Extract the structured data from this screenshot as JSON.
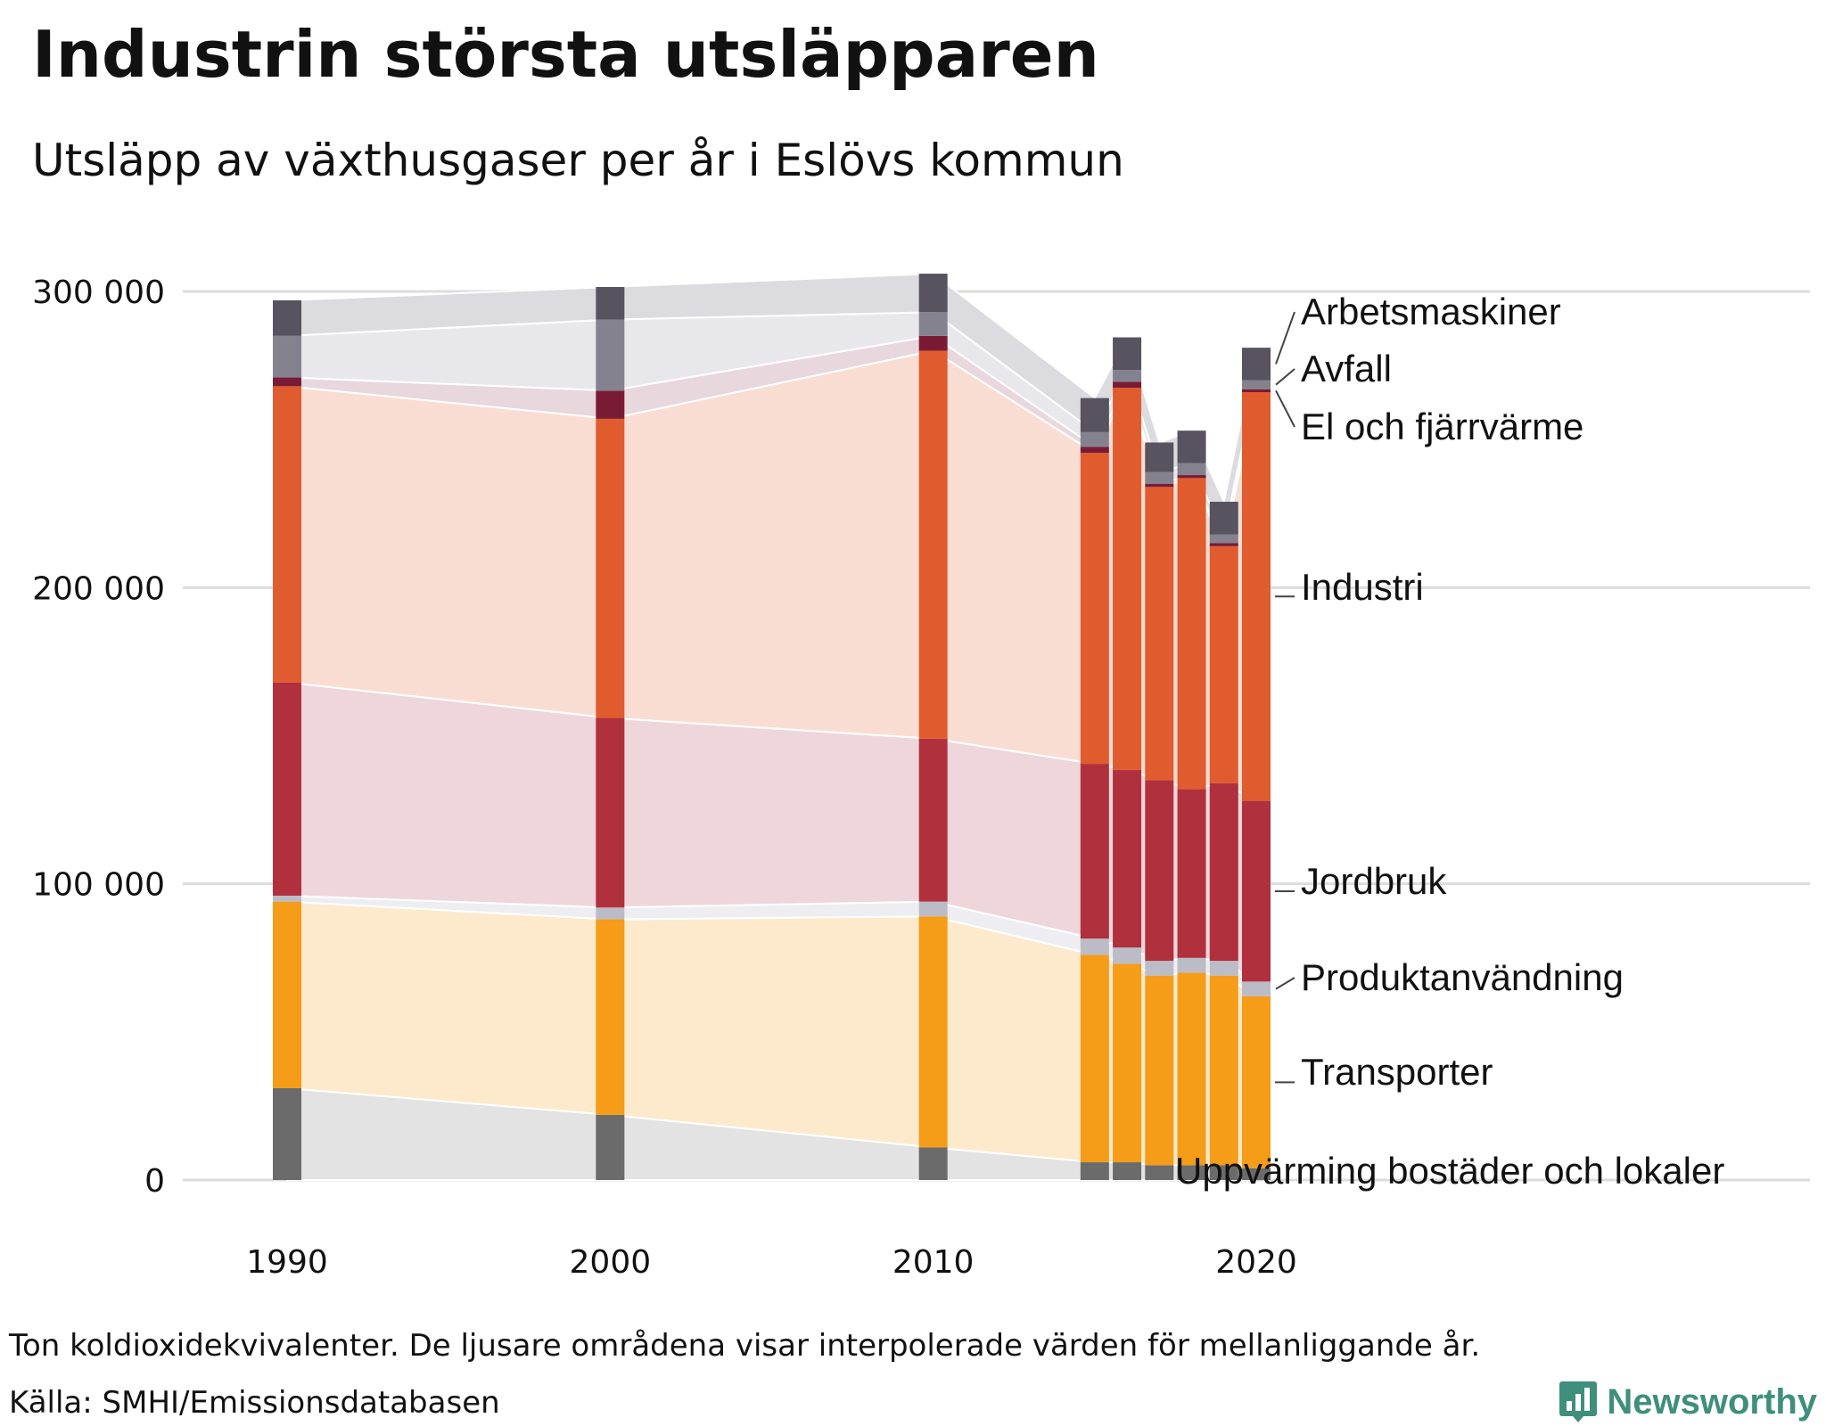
{
  "title": "Industrin största utsläpparen",
  "subtitle": "Utsläpp av växthusgaser per år i Eslövs kommun",
  "footer": {
    "note": "Ton koldioxidekvivalenter. De ljusare områdena visar interpolerade värden för mellanliggande år.",
    "source": "Källa: SMHI/Emissionsdatabasen",
    "brand": "Newsworthy",
    "brand_icon": "bar-chart-icon",
    "brand_color": "#3f8f7c"
  },
  "chart_data": {
    "type": "bar",
    "stacked": true,
    "x": [
      1990,
      2000,
      2010,
      2015,
      2016,
      2017,
      2018,
      2019,
      2020
    ],
    "xticks": [
      1990,
      2000,
      2010,
      2020
    ],
    "yticks": [
      0,
      100000,
      200000,
      300000
    ],
    "ytick_labels": [
      "0",
      "100 000",
      "200 000",
      "300 000"
    ],
    "ylim": [
      0,
      310000
    ],
    "grid": true,
    "legend": "direct labels right of last bar",
    "series": [
      {
        "name": "Uppvärming bostäder och lokaler",
        "color": "#6b6b6b",
        "band": "#e3e3e3",
        "values": [
          31000,
          22000,
          11000,
          6000,
          6000,
          5000,
          5000,
          5000,
          4000
        ]
      },
      {
        "name": "Transporter",
        "color": "#f59c19",
        "band": "#fde9cc",
        "values": [
          63000,
          66000,
          78000,
          70000,
          67000,
          64000,
          65000,
          64000,
          58000
        ]
      },
      {
        "name": "Produktanvändning",
        "color": "#bcbcc6",
        "band": "#eeeef2",
        "values": [
          2000,
          4000,
          5000,
          5500,
          5500,
          5000,
          5000,
          5000,
          5000
        ]
      },
      {
        "name": "Jordbruk",
        "color": "#b0303d",
        "band": "#efd6db",
        "values": [
          72000,
          64000,
          55000,
          59000,
          60000,
          61000,
          57000,
          60000,
          61000
        ]
      },
      {
        "name": "Industri",
        "color": "#e05c2e",
        "band": "#f9ddd3",
        "values": [
          100000,
          101000,
          131000,
          105000,
          129000,
          99000,
          105000,
          80000,
          138000
        ]
      },
      {
        "name": "El och fjärrvärme",
        "color": "#7a1b35",
        "band": "#e8d7dc",
        "values": [
          3000,
          9500,
          5000,
          2000,
          2000,
          1000,
          1000,
          1000,
          1000
        ]
      },
      {
        "name": "Avfall",
        "color": "#85828f",
        "band": "#e8e8ec",
        "values": [
          14000,
          24000,
          8000,
          5000,
          4000,
          4000,
          4000,
          3000,
          3000
        ]
      },
      {
        "name": "Arbetsmaskiner",
        "color": "#57535f",
        "band": "#dcdce0",
        "values": [
          12000,
          11000,
          13000,
          11500,
          11000,
          10000,
          11000,
          11000,
          11000
        ]
      }
    ]
  }
}
